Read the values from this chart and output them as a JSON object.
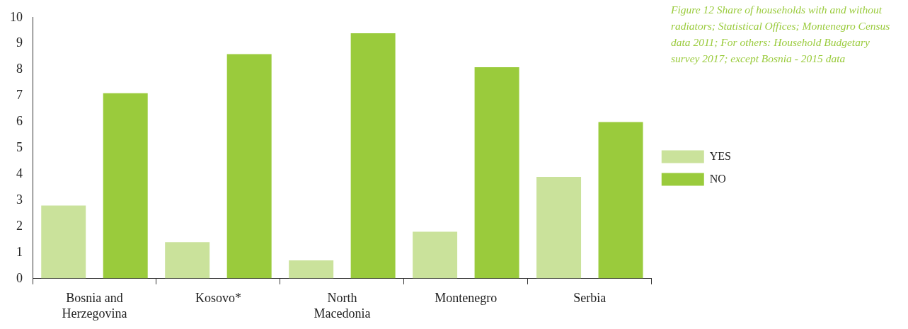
{
  "chart_data": {
    "type": "bar",
    "title": "Figure 12 Share of households with and without radiators; Statistical Offices; Montenegro Census data 2011; For others: Household Budgetary survey 2017; except Bosnia - 2015 data",
    "categories": [
      "Bosnia and Herzegovina",
      "Kosovo*",
      "North Macedonia",
      "Montenegro",
      "Serbia"
    ],
    "series": [
      {
        "name": "YES",
        "color": "#cae29b",
        "values": [
          2.8,
          1.4,
          0.7,
          1.8,
          3.9
        ]
      },
      {
        "name": "NO",
        "color": "#9acb3c",
        "values": [
          7.1,
          8.6,
          9.4,
          8.1,
          6.0
        ]
      }
    ],
    "ylim": [
      0,
      10
    ],
    "yticks": [
      0,
      1,
      2,
      3,
      4,
      5,
      6,
      7,
      8,
      9,
      10
    ],
    "grid": false,
    "legend": "right"
  }
}
